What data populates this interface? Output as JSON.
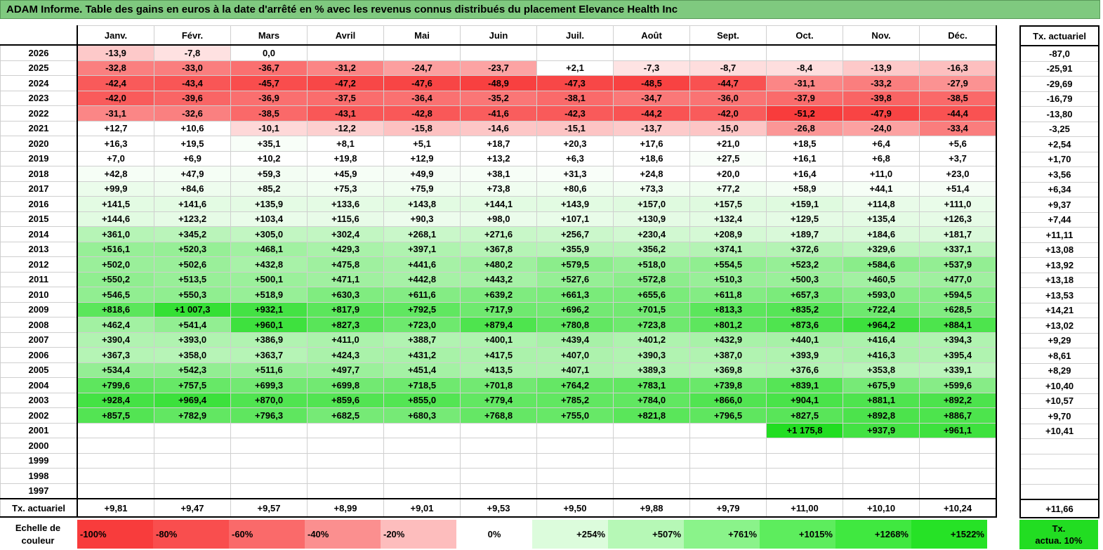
{
  "title": "ADAM Informe. Table des gains en euros à la date d'arrêté en % avec les revenus connus distribués du placement Elevance Health Inc",
  "months": [
    "Janv.",
    "Févr.",
    "Mars",
    "Avril",
    "Mai",
    "Juin",
    "Juil.",
    "Août",
    "Sept.",
    "Oct.",
    "Nov.",
    "Déc."
  ],
  "actuarial_header": "Tx. actuariel",
  "rows": [
    {
      "year": "2026",
      "cells": [
        "-13,9",
        "-7,8",
        "0,0",
        "",
        "",
        "",
        "",
        "",
        "",
        "",
        "",
        ""
      ],
      "act": "-87,0"
    },
    {
      "year": "2025",
      "cells": [
        "-32,8",
        "-33,0",
        "-36,7",
        "-31,2",
        "-24,7",
        "-23,7",
        "+2,1",
        "-7,3",
        "-8,7",
        "-8,4",
        "-13,9",
        "-16,3"
      ],
      "act": "-25,91"
    },
    {
      "year": "2024",
      "cells": [
        "-42,4",
        "-43,4",
        "-45,7",
        "-47,2",
        "-47,6",
        "-48,9",
        "-47,3",
        "-48,5",
        "-44,7",
        "-31,1",
        "-33,2",
        "-27,9"
      ],
      "act": "-29,69"
    },
    {
      "year": "2023",
      "cells": [
        "-42,0",
        "-39,6",
        "-36,9",
        "-37,5",
        "-36,4",
        "-35,2",
        "-38,1",
        "-34,7",
        "-36,0",
        "-37,9",
        "-39,8",
        "-38,5"
      ],
      "act": "-16,79"
    },
    {
      "year": "2022",
      "cells": [
        "-31,1",
        "-32,6",
        "-38,5",
        "-43,1",
        "-42,8",
        "-41,6",
        "-42,3",
        "-44,2",
        "-42,0",
        "-51,2",
        "-47,9",
        "-44,4"
      ],
      "act": "-13,80"
    },
    {
      "year": "2021",
      "cells": [
        "+12,7",
        "+10,6",
        "-10,1",
        "-12,2",
        "-15,8",
        "-14,6",
        "-15,1",
        "-13,7",
        "-15,0",
        "-26,8",
        "-24,0",
        "-33,4"
      ],
      "act": "-3,25"
    },
    {
      "year": "2020",
      "cells": [
        "+16,3",
        "+19,5",
        "+35,1",
        "+8,1",
        "+5,1",
        "+18,7",
        "+20,3",
        "+17,6",
        "+21,0",
        "+18,5",
        "+6,4",
        "+5,6"
      ],
      "act": "+2,54"
    },
    {
      "year": "2019",
      "cells": [
        "+7,0",
        "+6,9",
        "+10,2",
        "+19,8",
        "+12,9",
        "+13,2",
        "+6,3",
        "+18,6",
        "+27,5",
        "+16,1",
        "+6,8",
        "+3,7"
      ],
      "act": "+1,70"
    },
    {
      "year": "2018",
      "cells": [
        "+42,8",
        "+47,9",
        "+59,3",
        "+45,9",
        "+49,9",
        "+38,1",
        "+31,3",
        "+24,8",
        "+20,0",
        "+16,4",
        "+11,0",
        "+23,0"
      ],
      "act": "+3,56"
    },
    {
      "year": "2017",
      "cells": [
        "+99,9",
        "+84,6",
        "+85,2",
        "+75,3",
        "+75,9",
        "+73,8",
        "+80,6",
        "+73,3",
        "+77,2",
        "+58,9",
        "+44,1",
        "+51,4"
      ],
      "act": "+6,34"
    },
    {
      "year": "2016",
      "cells": [
        "+141,5",
        "+141,6",
        "+135,9",
        "+133,6",
        "+143,8",
        "+144,1",
        "+143,9",
        "+157,0",
        "+157,5",
        "+159,1",
        "+114,8",
        "+111,0"
      ],
      "act": "+9,37"
    },
    {
      "year": "2015",
      "cells": [
        "+144,6",
        "+123,2",
        "+103,4",
        "+115,6",
        "+90,3",
        "+98,0",
        "+107,1",
        "+130,9",
        "+132,4",
        "+129,5",
        "+135,4",
        "+126,3"
      ],
      "act": "+7,44"
    },
    {
      "year": "2014",
      "cells": [
        "+361,0",
        "+345,2",
        "+305,0",
        "+302,4",
        "+268,1",
        "+271,6",
        "+256,7",
        "+230,4",
        "+208,9",
        "+189,7",
        "+184,6",
        "+181,7"
      ],
      "act": "+11,11"
    },
    {
      "year": "2013",
      "cells": [
        "+516,1",
        "+520,3",
        "+468,1",
        "+429,3",
        "+397,1",
        "+367,8",
        "+355,9",
        "+356,2",
        "+374,1",
        "+372,6",
        "+329,6",
        "+337,1"
      ],
      "act": "+13,08"
    },
    {
      "year": "2012",
      "cells": [
        "+502,0",
        "+502,6",
        "+432,8",
        "+475,8",
        "+441,6",
        "+480,2",
        "+579,5",
        "+518,0",
        "+554,5",
        "+523,2",
        "+584,6",
        "+537,9"
      ],
      "act": "+13,92"
    },
    {
      "year": "2011",
      "cells": [
        "+550,2",
        "+513,5",
        "+500,1",
        "+471,1",
        "+442,8",
        "+443,2",
        "+527,6",
        "+572,8",
        "+510,3",
        "+500,3",
        "+460,5",
        "+477,0"
      ],
      "act": "+13,18"
    },
    {
      "year": "2010",
      "cells": [
        "+546,5",
        "+550,3",
        "+518,9",
        "+630,3",
        "+611,6",
        "+639,2",
        "+661,3",
        "+655,6",
        "+611,8",
        "+657,3",
        "+593,0",
        "+594,5"
      ],
      "act": "+13,53"
    },
    {
      "year": "2009",
      "cells": [
        "+818,6",
        "+1 007,3",
        "+932,1",
        "+817,9",
        "+792,5",
        "+717,9",
        "+696,2",
        "+701,5",
        "+813,3",
        "+835,2",
        "+722,4",
        "+628,5"
      ],
      "act": "+14,21"
    },
    {
      "year": "2008",
      "cells": [
        "+462,4",
        "+541,4",
        "+960,1",
        "+827,3",
        "+723,0",
        "+879,4",
        "+780,8",
        "+723,8",
        "+801,2",
        "+873,6",
        "+964,2",
        "+884,1"
      ],
      "act": "+13,02"
    },
    {
      "year": "2007",
      "cells": [
        "+390,4",
        "+393,0",
        "+386,9",
        "+411,0",
        "+388,7",
        "+400,1",
        "+439,4",
        "+401,2",
        "+432,9",
        "+440,1",
        "+416,4",
        "+394,3"
      ],
      "act": "+9,29"
    },
    {
      "year": "2006",
      "cells": [
        "+367,3",
        "+358,0",
        "+363,7",
        "+424,3",
        "+431,2",
        "+417,5",
        "+407,0",
        "+390,3",
        "+387,0",
        "+393,9",
        "+416,3",
        "+395,4"
      ],
      "act": "+8,61"
    },
    {
      "year": "2005",
      "cells": [
        "+534,4",
        "+542,3",
        "+511,6",
        "+497,7",
        "+451,4",
        "+413,5",
        "+407,1",
        "+389,3",
        "+369,8",
        "+376,6",
        "+353,8",
        "+339,1"
      ],
      "act": "+8,29"
    },
    {
      "year": "2004",
      "cells": [
        "+799,6",
        "+757,5",
        "+699,3",
        "+699,8",
        "+718,5",
        "+701,8",
        "+764,2",
        "+783,1",
        "+739,8",
        "+839,1",
        "+675,9",
        "+599,6"
      ],
      "act": "+10,40"
    },
    {
      "year": "2003",
      "cells": [
        "+928,4",
        "+969,4",
        "+870,0",
        "+859,6",
        "+855,0",
        "+779,4",
        "+785,2",
        "+784,0",
        "+866,0",
        "+904,1",
        "+881,1",
        "+892,2"
      ],
      "act": "+10,57"
    },
    {
      "year": "2002",
      "cells": [
        "+857,5",
        "+782,9",
        "+796,3",
        "+682,5",
        "+680,3",
        "+768,8",
        "+755,0",
        "+821,8",
        "+796,5",
        "+827,5",
        "+892,8",
        "+886,7"
      ],
      "act": "+9,70"
    },
    {
      "year": "2001",
      "cells": [
        "",
        "",
        "",
        "",
        "",
        "",
        "",
        "",
        "",
        "+1 175,8",
        "+937,9",
        "+961,1"
      ],
      "act": "+10,41"
    },
    {
      "year": "2000",
      "cells": [
        "",
        "",
        "",
        "",
        "",
        "",
        "",
        "",
        "",
        "",
        "",
        ""
      ],
      "act": ""
    },
    {
      "year": "1999",
      "cells": [
        "",
        "",
        "",
        "",
        "",
        "",
        "",
        "",
        "",
        "",
        "",
        ""
      ],
      "act": ""
    },
    {
      "year": "1998",
      "cells": [
        "",
        "",
        "",
        "",
        "",
        "",
        "",
        "",
        "",
        "",
        "",
        ""
      ],
      "act": ""
    },
    {
      "year": "1997",
      "cells": [
        "",
        "",
        "",
        "",
        "",
        "",
        "",
        "",
        "",
        "",
        "",
        ""
      ],
      "act": ""
    }
  ],
  "footer": {
    "label": "Tx. actuariel",
    "cells": [
      "+9,81",
      "+9,47",
      "+9,57",
      "+8,99",
      "+9,01",
      "+9,53",
      "+9,50",
      "+9,88",
      "+9,79",
      "+11,00",
      "+10,10",
      "+10,24"
    ],
    "act": "+11,66"
  },
  "scale": {
    "label_line1": "Echelle de",
    "label_line2": "couleur",
    "items": [
      {
        "label": "-100%",
        "color": "#f83c3c",
        "align": "left"
      },
      {
        "label": "-80%",
        "color": "#f94e4e",
        "align": "left"
      },
      {
        "label": "-60%",
        "color": "#fa6a6a",
        "align": "left"
      },
      {
        "label": "-40%",
        "color": "#fb8f8f",
        "align": "left"
      },
      {
        "label": "-20%",
        "color": "#fdbdbd",
        "align": "left"
      },
      {
        "label": "0%",
        "color": "#ffffff",
        "align": "center"
      },
      {
        "label": "+254%",
        "color": "#dcfcdc",
        "align": "right"
      },
      {
        "label": "+507%",
        "color": "#b6f8b6",
        "align": "right"
      },
      {
        "label": "+761%",
        "color": "#8af38a",
        "align": "right"
      },
      {
        "label": "+1015%",
        "color": "#5ded5d",
        "align": "right"
      },
      {
        "label": "+1268%",
        "color": "#40e840",
        "align": "right"
      },
      {
        "label": "+1522%",
        "color": "#26e226",
        "align": "right"
      }
    ],
    "act_line1": "Tx.",
    "act_line2": "actua. 10%",
    "act_color": "#22dd22"
  },
  "colors": {
    "title_bg": "#7fc97f",
    "negative_max": "#f83c3c",
    "positive_max": "#22dd22",
    "neutral": "#ffffff"
  }
}
